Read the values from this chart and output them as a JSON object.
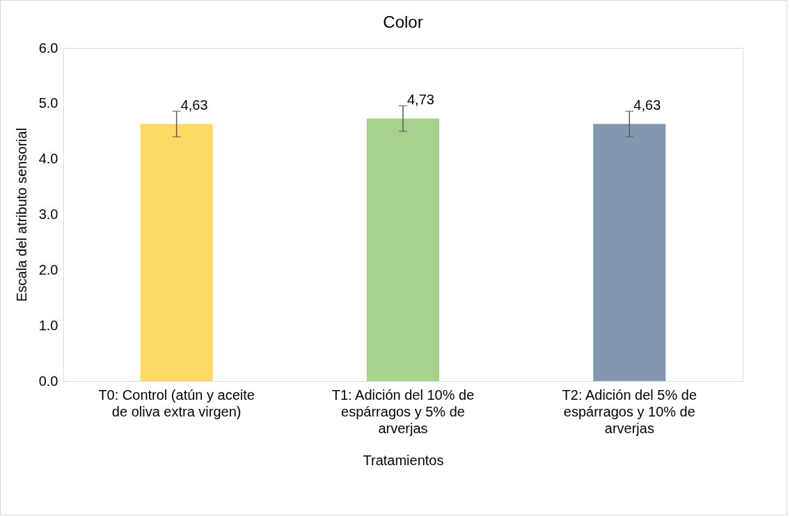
{
  "chart_data": {
    "type": "bar",
    "title": "Color",
    "xlabel": "Tratamientos",
    "ylabel": "Escala del atributo sensorial",
    "categories": [
      "T0: Control (atún y aceite de oliva extra virgen)",
      "T1: Adición del 10% de espárragos y 5% de arverjas",
      "T2: Adición del  5% de espárragos y 10% de arverjas"
    ],
    "values": [
      4.63,
      4.73,
      4.63
    ],
    "colors": [
      "#ffd966",
      "#a9d18e",
      "#8497b0"
    ],
    "errors": [
      0.23,
      0.23,
      0.23
    ],
    "value_labels": [
      "4,63",
      "4,73",
      "4,63"
    ],
    "ylim": [
      0,
      6
    ],
    "yticks": [
      {
        "value": 0,
        "label": "0.0"
      },
      {
        "value": 1,
        "label": "1.0"
      },
      {
        "value": 2,
        "label": "2.0"
      },
      {
        "value": 3,
        "label": "3.0"
      },
      {
        "value": 4,
        "label": "4.0"
      },
      {
        "value": 5,
        "label": "5.0"
      },
      {
        "value": 6,
        "label": "6.0"
      }
    ],
    "grid": false
  }
}
